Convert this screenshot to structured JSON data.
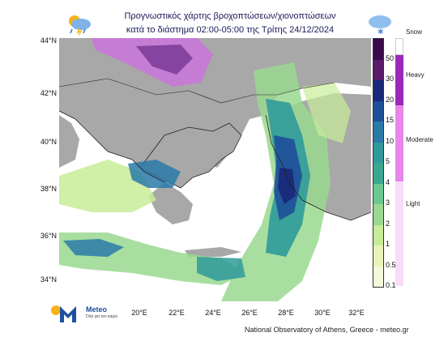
{
  "title": {
    "line1": "Προγνωστικός χάρτης βροχοπτώσεων/χιονοπτώσεων",
    "line2": "κατά το διάστημα 02:00-05:00 της Τρίτης 24/12/2024"
  },
  "icons": {
    "left": "rain-thunder-cloud-icon",
    "right": "snow-cloud-icon"
  },
  "lat_labels": [
    "44°N",
    "42°N",
    "40°N",
    "38°N",
    "36°N",
    "34°N"
  ],
  "lon_labels": [
    "20°E",
    "22°E",
    "24°E",
    "26°E",
    "28°E",
    "30°E",
    "32°E"
  ],
  "colorbar": {
    "levels": [
      "50",
      "30",
      "20",
      "15",
      "10",
      "5",
      "4",
      "3",
      "2",
      "1",
      "0.5",
      "0.1"
    ],
    "colors": [
      "#3a0a4a",
      "#5a1a6a",
      "#1a2a7a",
      "#1f4f9a",
      "#2a7aa8",
      "#2f9a9a",
      "#3aa890",
      "#6ac890",
      "#9ad890",
      "#c8ec98",
      "#e8f4b8",
      "#f4f9dc"
    ],
    "categories": [
      "Snow",
      "Heavy",
      "Moderate",
      "Light"
    ],
    "category_colors": [
      "#ffffff",
      "#9a28b8",
      "#e488ea",
      "#f8dcf8"
    ]
  },
  "brand": {
    "name": "Meteo",
    "tagline": "Όλα για τον καιρό"
  },
  "credit": "National Observatory of Athens, Greece - meteo.gr"
}
